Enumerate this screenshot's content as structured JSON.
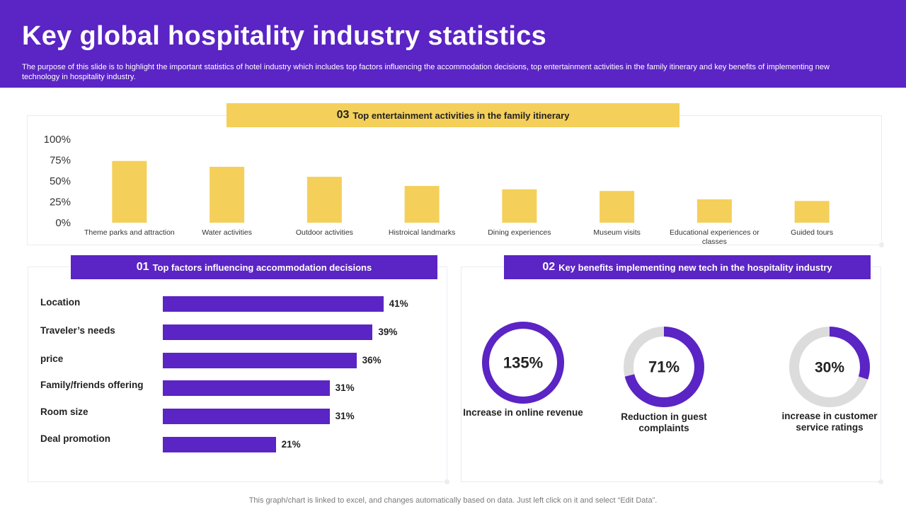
{
  "header": {
    "title": "Key global hospitality industry statistics",
    "subtitle": "The purpose of this slide is to highlight the important statistics of hotel industry which includes top factors influencing the accommodation decisions, top entertainment activities in the family itinerary and key benefits of implementing new technology in hospitality industry."
  },
  "colors": {
    "purple": "#5b24c4",
    "yellow": "#f4cf5a",
    "gray_ring": "#dcdcdc"
  },
  "sections": {
    "entertainment": {
      "num": "03",
      "title": "Top entertainment activities in the family itinerary"
    },
    "factors": {
      "num": "01",
      "title": "Top factors influencing accommodation decisions"
    },
    "benefits": {
      "num": "02",
      "title": "Key benefits implementing new tech in the hospitality industry"
    }
  },
  "footer": "This graph/chart is linked to excel,  and changes automatically based on data. Just left click on it and select “Edit Data”.",
  "chart_data": [
    {
      "type": "bar",
      "categories": [
        "Theme parks and attraction",
        "Water activities",
        "Outdoor activities",
        "Histroical landmarks",
        "Dining experiences",
        "Museum visits",
        "Educational experiences or classes",
        "Guided tours"
      ],
      "values": [
        74,
        67,
        55,
        44,
        40,
        38,
        28,
        26
      ],
      "yticks": [
        "100%",
        "75%",
        "50%",
        "25%",
        "0%"
      ],
      "ylim": [
        0,
        100
      ],
      "bar_color": "#f4cf5a",
      "grid": false
    },
    {
      "type": "bar",
      "orientation": "horizontal",
      "categories": [
        "Location",
        "Traveler’s needs",
        "price",
        "Family/friends offering",
        "Room size",
        "Deal promotion"
      ],
      "values": [
        41,
        39,
        36,
        31,
        31,
        21
      ],
      "value_labels": [
        "41%",
        "39%",
        "36%",
        "31%",
        "31%",
        "21%"
      ],
      "bar_color": "#5b24c4"
    },
    {
      "type": "pie",
      "style": "donut",
      "items": [
        {
          "value_label": "135%",
          "value": 135,
          "caption": "Increase in online revenue"
        },
        {
          "value_label": "71%",
          "value": 71,
          "caption": "Reduction in guest complaints"
        },
        {
          "value_label": "30%",
          "value": 30,
          "caption": "increase in customer service ratings"
        }
      ]
    }
  ]
}
